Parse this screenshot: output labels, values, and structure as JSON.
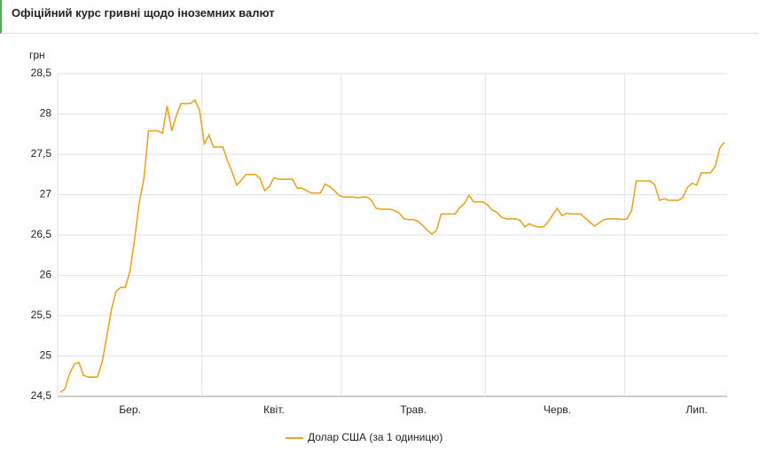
{
  "chart_data": {
    "type": "line",
    "title": "Офіційний курс гривні щодо іноземних валют",
    "y_label": "грн",
    "categories": [
      "Бер.",
      "Квіт.",
      "Трав.",
      "Черв.",
      "Лип."
    ],
    "series": [
      {
        "name": "Долар США (за 1 одиницю)",
        "color": "#e8a424",
        "values": [
          [
            24.55,
            24.59,
            24.78,
            24.9,
            24.92,
            24.76,
            24.74,
            24.74,
            24.74,
            24.92,
            25.24,
            25.57,
            25.8,
            25.85,
            25.85,
            26.05,
            26.45,
            26.9,
            27.2,
            27.79,
            27.79,
            27.79,
            27.76,
            28.1,
            27.79,
            27.98,
            28.13,
            28.13,
            28.13,
            28.17,
            28.04
          ],
          [
            27.63,
            27.74,
            27.59,
            27.59,
            27.59,
            27.42,
            27.28,
            27.12,
            27.18,
            27.25,
            27.25,
            27.25,
            27.2,
            27.05,
            27.1,
            27.21,
            27.19,
            27.19,
            27.19,
            27.19,
            27.08,
            27.08,
            27.05,
            27.02,
            27.02,
            27.02,
            27.13,
            27.1,
            27.05,
            26.99
          ],
          [
            26.97,
            26.97,
            26.97,
            26.96,
            26.97,
            26.97,
            26.93,
            26.83,
            26.82,
            26.82,
            26.82,
            26.8,
            26.77,
            26.7,
            26.69,
            26.69,
            26.67,
            26.62,
            26.56,
            26.51,
            26.56,
            26.76,
            26.76,
            26.76,
            26.76,
            26.84,
            26.89,
            26.99,
            26.91,
            26.91,
            26.91
          ],
          [
            26.87,
            26.81,
            26.78,
            26.72,
            26.7,
            26.7,
            26.7,
            26.68,
            26.6,
            26.64,
            26.61,
            26.6,
            26.6,
            26.66,
            26.75,
            26.83,
            26.74,
            26.77,
            26.76,
            26.76,
            26.76,
            26.71,
            26.66,
            26.61,
            26.65,
            26.69,
            26.7,
            26.7,
            26.7,
            26.69
          ],
          [
            26.7,
            26.8,
            27.17,
            27.17,
            27.17,
            27.17,
            27.12,
            26.93,
            26.95,
            26.93,
            26.93,
            26.93,
            26.96,
            27.09,
            27.14,
            27.12,
            27.27,
            27.27,
            27.27,
            27.35,
            27.58,
            27.65
          ]
        ]
      }
    ],
    "ylim": [
      24.5,
      28.5
    ],
    "yticks": [
      {
        "value": 24.5,
        "label": "24,5"
      },
      25,
      {
        "value": 25.5,
        "label": "25,5"
      },
      26,
      {
        "value": 26.5,
        "label": "26,5"
      },
      27,
      {
        "value": 27.5,
        "label": "27,5"
      },
      28,
      {
        "value": 28.5,
        "label": "28,5"
      }
    ],
    "grid": true
  }
}
